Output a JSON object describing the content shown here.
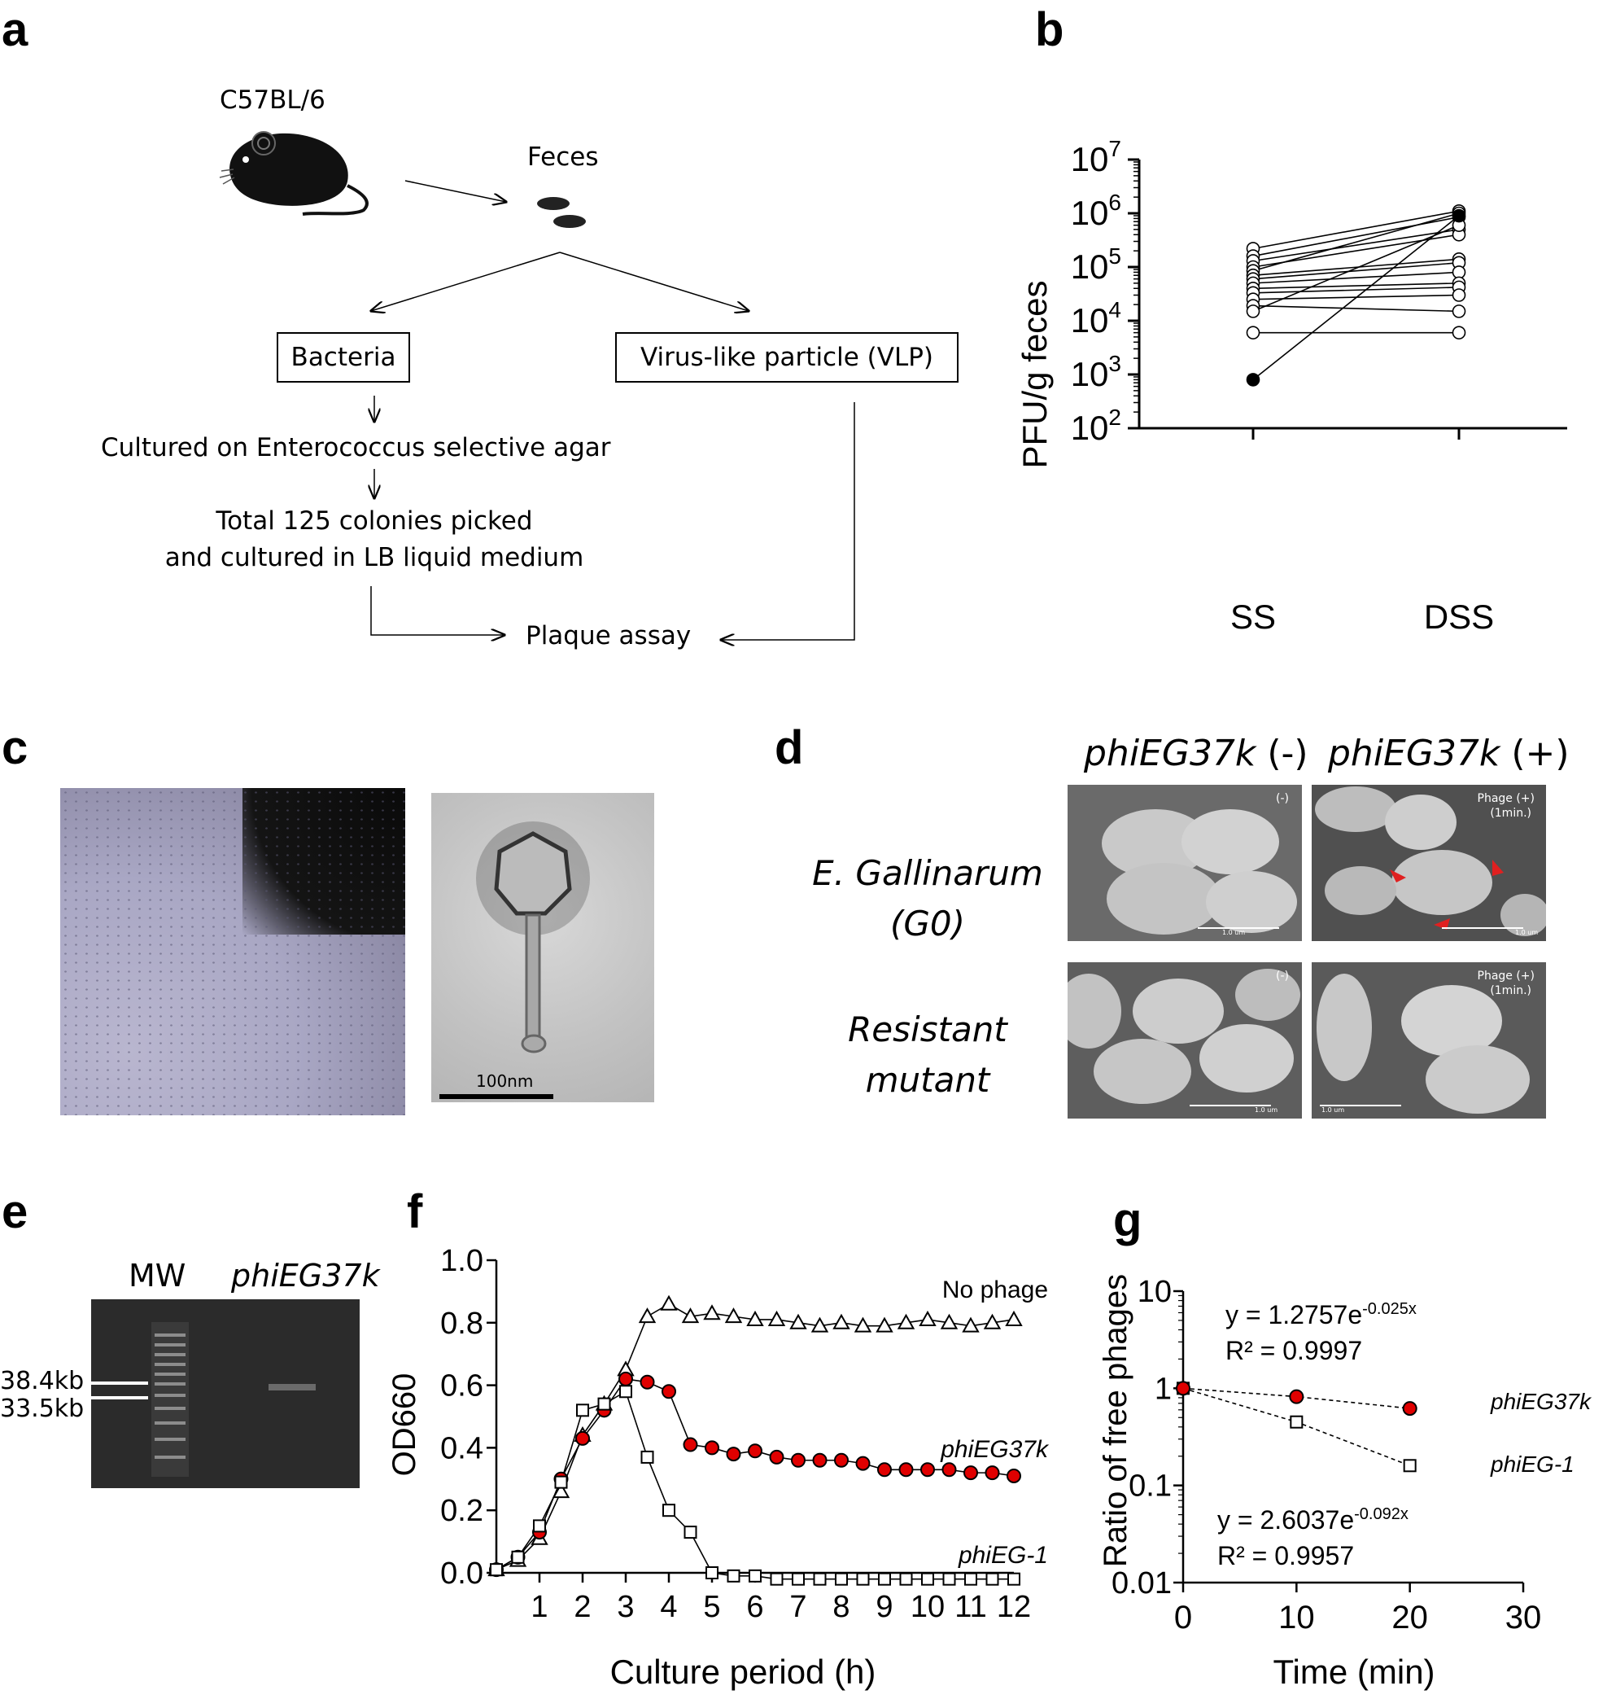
{
  "panel_labels": {
    "a": "a",
    "b": "b",
    "c": "c",
    "d": "d",
    "e": "e",
    "f": "f",
    "g": "g"
  },
  "panel_a": {
    "mouse_strain": "C57BL/6",
    "feces": "Feces",
    "bacteria": "Bacteria",
    "vlp": "Virus-like particle (VLP)",
    "cultured": "Cultured on Enterococcus selective agar",
    "picked_line1": "Total 125 colonies picked",
    "picked_line2": "and cultured in LB liquid medium",
    "plaque": "Plaque assay"
  },
  "panel_c": {
    "scale_bar": "100nm"
  },
  "panel_d": {
    "col_neg_name": "phiEG37k",
    "col_neg_sign": " (-)",
    "col_pos_name": "phiEG37k",
    "col_pos_sign": " (+)",
    "row1_line1": "E. Gallinarum",
    "row1_line2": "(G0)",
    "row2_line1": "Resistant",
    "row2_line2": "mutant",
    "img_neg": "(-)",
    "img_pos_line1": "Phage (+)",
    "img_pos_line2": "(1min.)",
    "scale": "1.0 um"
  },
  "panel_e": {
    "lane_mw": "MW",
    "lane_phage": "phiEG37k",
    "band1": "38.4kb",
    "band2": "33.5kb"
  },
  "chart_data": [
    {
      "id": "b",
      "type": "scatter",
      "ylabel": "PFU/g feces",
      "yscale": "log",
      "ylim": [
        100,
        10000000
      ],
      "yticks": [
        "10^2",
        "10^3",
        "10^4",
        "10^5",
        "10^6",
        "10^7"
      ],
      "categories": [
        "SS",
        "DSS"
      ],
      "pairs": [
        {
          "SS": 220000,
          "DSS": 1100000,
          "filled": false
        },
        {
          "SS": 160000,
          "DSS": 850000,
          "filled": false
        },
        {
          "SS": 130000,
          "DSS": 500000,
          "filled": false
        },
        {
          "SS": 100000,
          "DSS": 400000,
          "filled": false
        },
        {
          "SS": 85000,
          "DSS": 1000000,
          "filled": false
        },
        {
          "SS": 70000,
          "DSS": 140000,
          "filled": false
        },
        {
          "SS": 60000,
          "DSS": 120000,
          "filled": false
        },
        {
          "SS": 50000,
          "DSS": 80000,
          "filled": false
        },
        {
          "SS": 40000,
          "DSS": 50000,
          "filled": false
        },
        {
          "SS": 33000,
          "DSS": 42000,
          "filled": false
        },
        {
          "SS": 25000,
          "DSS": 30000,
          "filled": false
        },
        {
          "SS": 19000,
          "DSS": 15000,
          "filled": false
        },
        {
          "SS": 15000,
          "DSS": 600000,
          "filled": false
        },
        {
          "SS": 6000,
          "DSS": 6000,
          "filled": false
        },
        {
          "SS": 800,
          "DSS": 900000,
          "filled": true
        }
      ]
    },
    {
      "id": "f",
      "type": "line",
      "xlabel": "Culture period (h)",
      "ylabel": "OD660",
      "xlim": [
        0,
        12
      ],
      "ylim": [
        0,
        1.0
      ],
      "xticks": [
        1,
        2,
        3,
        4,
        5,
        6,
        7,
        8,
        9,
        10,
        11,
        12
      ],
      "yticks": [
        "0.0",
        "0.2",
        "0.4",
        "0.6",
        "0.8",
        "1.0"
      ],
      "series": [
        {
          "name": "No phage",
          "marker": "triangle",
          "x": [
            0,
            0.5,
            1,
            1.5,
            2,
            2.5,
            3,
            3.5,
            4,
            4.5,
            5,
            5.5,
            6,
            6.5,
            7,
            7.5,
            8,
            8.5,
            9,
            9.5,
            10,
            10.5,
            11,
            11.5,
            12
          ],
          "y": [
            0.01,
            0.04,
            0.11,
            0.26,
            0.44,
            0.54,
            0.65,
            0.82,
            0.86,
            0.82,
            0.83,
            0.82,
            0.81,
            0.81,
            0.8,
            0.79,
            0.8,
            0.79,
            0.79,
            0.8,
            0.81,
            0.8,
            0.79,
            0.8,
            0.81
          ]
        },
        {
          "name": "phiEG37k",
          "marker": "circle",
          "x": [
            0,
            0.5,
            1,
            1.5,
            2,
            2.5,
            3,
            3.5,
            4,
            4.5,
            5,
            5.5,
            6,
            6.5,
            7,
            7.5,
            8,
            8.5,
            9,
            9.5,
            10,
            10.5,
            11,
            11.5,
            12
          ],
          "y": [
            0.01,
            0.05,
            0.13,
            0.3,
            0.43,
            0.52,
            0.62,
            0.61,
            0.58,
            0.41,
            0.4,
            0.38,
            0.39,
            0.37,
            0.36,
            0.36,
            0.36,
            0.35,
            0.33,
            0.33,
            0.33,
            0.33,
            0.32,
            0.32,
            0.31
          ]
        },
        {
          "name": "phiEG-1",
          "marker": "square",
          "x": [
            0,
            0.5,
            1,
            1.5,
            2,
            2.5,
            3,
            3.5,
            4,
            4.5,
            5,
            5.5,
            6,
            6.5,
            7,
            7.5,
            8,
            8.5,
            9,
            9.5,
            10,
            10.5,
            11,
            11.5,
            12
          ],
          "y": [
            0.01,
            0.05,
            0.15,
            0.29,
            0.52,
            0.54,
            0.58,
            0.37,
            0.2,
            0.13,
            0.0,
            -0.01,
            -0.01,
            -0.02,
            -0.02,
            -0.02,
            -0.02,
            -0.02,
            -0.02,
            -0.02,
            -0.02,
            -0.02,
            -0.02,
            -0.02,
            -0.02
          ]
        }
      ]
    },
    {
      "id": "g",
      "type": "scatter",
      "xlabel": "Time (min)",
      "ylabel": "Ratio of free phages",
      "yscale": "log",
      "xlim": [
        0,
        30
      ],
      "ylim": [
        0.01,
        10
      ],
      "xticks": [
        "0",
        "10",
        "20",
        "30"
      ],
      "yticks": [
        "0.01",
        "0.1",
        "1",
        "10"
      ],
      "series": [
        {
          "name": "phiEG37k",
          "marker": "circle",
          "x": [
            0,
            10,
            20
          ],
          "y": [
            1.0,
            0.82,
            0.62
          ]
        },
        {
          "name": "phiEG-1",
          "marker": "square",
          "x": [
            0,
            10,
            20
          ],
          "y": [
            1.0,
            0.45,
            0.16
          ]
        }
      ],
      "annotations": {
        "eq1_base": "y = 1.2757e",
        "eq1_exp": "-0.025x",
        "r1": "R² = 0.9997",
        "eq2_base": "y = 2.6037e",
        "eq2_exp": "-0.092x",
        "r2": "R² = 0.9957"
      }
    }
  ]
}
